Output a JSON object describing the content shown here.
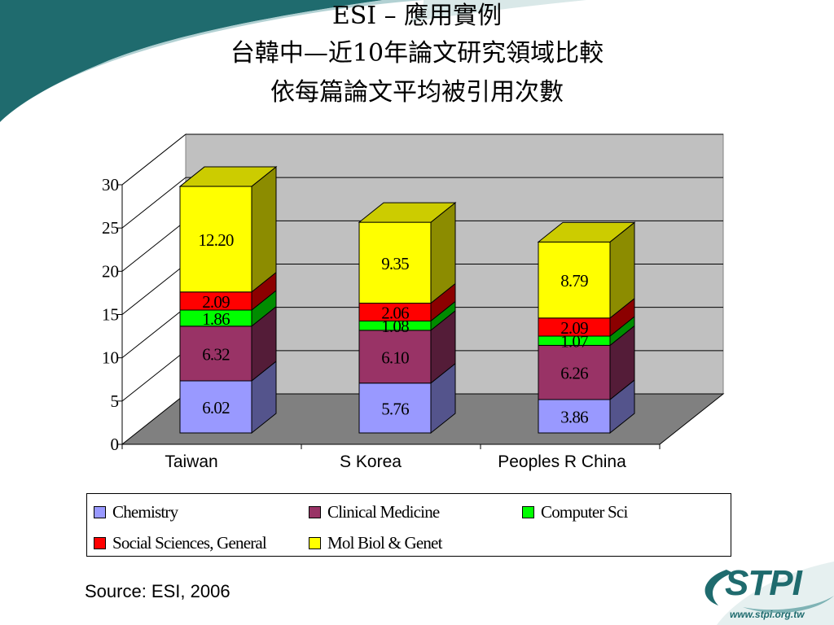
{
  "title": {
    "line1": "ESI – 應用實例",
    "line2": "台韓中—近10年論文研究領域比較",
    "line3": "依每篇論文平均被引用次數"
  },
  "chart_data": {
    "type": "bar",
    "stacked": true,
    "categories": [
      "Taiwan",
      "S Korea",
      "Peoples R China"
    ],
    "ylim": [
      0,
      30
    ],
    "yticks": [
      0,
      5,
      10,
      15,
      20,
      25,
      30
    ],
    "grid": true,
    "legend_position": "bottom",
    "series": [
      {
        "name": "Chemistry",
        "color": "#9999ff",
        "values": [
          6.02,
          5.76,
          3.86
        ],
        "labels": [
          "6.02",
          "5.76",
          "3.86"
        ]
      },
      {
        "name": "Clinical Medicine",
        "color": "#993366",
        "values": [
          6.32,
          6.1,
          6.26
        ],
        "labels": [
          "6.32",
          "6.10",
          "6.26"
        ]
      },
      {
        "name": "Computer Sci",
        "color": "#00ff00",
        "values": [
          1.86,
          1.08,
          1.07
        ],
        "labels": [
          "1.86",
          "1.08",
          "1.07"
        ]
      },
      {
        "name": "Social Sciences, General",
        "color": "#ff0000",
        "values": [
          2.09,
          2.06,
          2.09
        ],
        "labels": [
          "2.09",
          "2.06",
          "2.09"
        ]
      },
      {
        "name": "Mol Biol & Genet",
        "color": "#ffff00",
        "values": [
          12.2,
          9.35,
          8.79
        ],
        "labels": [
          "12.20",
          "9.35",
          "8.79"
        ]
      }
    ]
  },
  "source": "Source: ESI, 2006",
  "logo": {
    "text": "STPI",
    "url": "www.stpi.org.tw"
  },
  "colors": {
    "accent_teal": "#1f6b6e",
    "plot_wall": "#c0c0c0",
    "plot_floor": "#808080"
  }
}
